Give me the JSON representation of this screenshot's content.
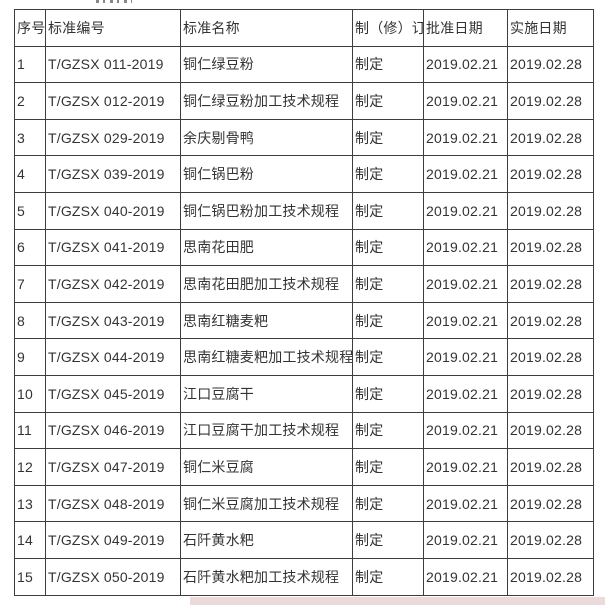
{
  "table": {
    "headers": [
      "序号",
      "标准编号",
      "标准名称",
      "制（修）订",
      "批准日期",
      "实施日期"
    ],
    "rows": [
      {
        "no": "1",
        "code": "T/GZSX 011-2019",
        "name": "铜仁绿豆粉",
        "type": "制定",
        "approval": "2019.02.21",
        "implementation": "2019.02.28"
      },
      {
        "no": "2",
        "code": "T/GZSX 012-2019",
        "name": "铜仁绿豆粉加工技术规程",
        "type": "制定",
        "approval": "2019.02.21",
        "implementation": "2019.02.28"
      },
      {
        "no": "3",
        "code": "T/GZSX 029-2019",
        "name": "余庆剔骨鸭",
        "type": "制定",
        "approval": "2019.02.21",
        "implementation": "2019.02.28"
      },
      {
        "no": "4",
        "code": "T/GZSX 039-2019",
        "name": "铜仁锅巴粉",
        "type": "制定",
        "approval": "2019.02.21",
        "implementation": "2019.02.28"
      },
      {
        "no": "5",
        "code": "T/GZSX 040-2019",
        "name": "铜仁锅巴粉加工技术规程",
        "type": "制定",
        "approval": "2019.02.21",
        "implementation": "2019.02.28"
      },
      {
        "no": "6",
        "code": "T/GZSX 041-2019",
        "name": "思南花田肥",
        "type": "制定",
        "approval": "2019.02.21",
        "implementation": "2019.02.28"
      },
      {
        "no": "7",
        "code": "T/GZSX 042-2019",
        "name": "思南花田肥加工技术规程",
        "type": "制定",
        "approval": "2019.02.21",
        "implementation": "2019.02.28"
      },
      {
        "no": "8",
        "code": "T/GZSX 043-2019",
        "name": "思南红糖麦粑",
        "type": "制定",
        "approval": "2019.02.21",
        "implementation": "2019.02.28"
      },
      {
        "no": "9",
        "code": "T/GZSX 044-2019",
        "name": "思南红糖麦粑加工技术规程",
        "type": "制定",
        "approval": "2019.02.21",
        "implementation": "2019.02.28"
      },
      {
        "no": "10",
        "code": "T/GZSX 045-2019",
        "name": "江口豆腐干",
        "type": "制定",
        "approval": "2019.02.21",
        "implementation": "2019.02.28"
      },
      {
        "no": "11",
        "code": "T/GZSX 046-2019",
        "name": "江口豆腐干加工技术规程",
        "type": "制定",
        "approval": "2019.02.21",
        "implementation": "2019.02.28"
      },
      {
        "no": "12",
        "code": "T/GZSX 047-2019",
        "name": "铜仁米豆腐",
        "type": "制定",
        "approval": "2019.02.21",
        "implementation": "2019.02.28"
      },
      {
        "no": "13",
        "code": "T/GZSX 048-2019",
        "name": "铜仁米豆腐加工技术规程",
        "type": "制定",
        "approval": "2019.02.21",
        "implementation": "2019.02.28"
      },
      {
        "no": "14",
        "code": "T/GZSX 049-2019",
        "name": "石阡黄水粑",
        "type": "制定",
        "approval": "2019.02.21",
        "implementation": "2019.02.28"
      },
      {
        "no": "15",
        "code": "T/GZSX 050-2019",
        "name": "石阡黄水粑加工技术规程",
        "type": "制定",
        "approval": "2019.02.21",
        "implementation": "2019.02.28"
      }
    ]
  },
  "colors": {
    "border": "#3d3d3d",
    "text": "#333333",
    "background": "#ffffff",
    "bottom_strip": "#ecdadb"
  }
}
